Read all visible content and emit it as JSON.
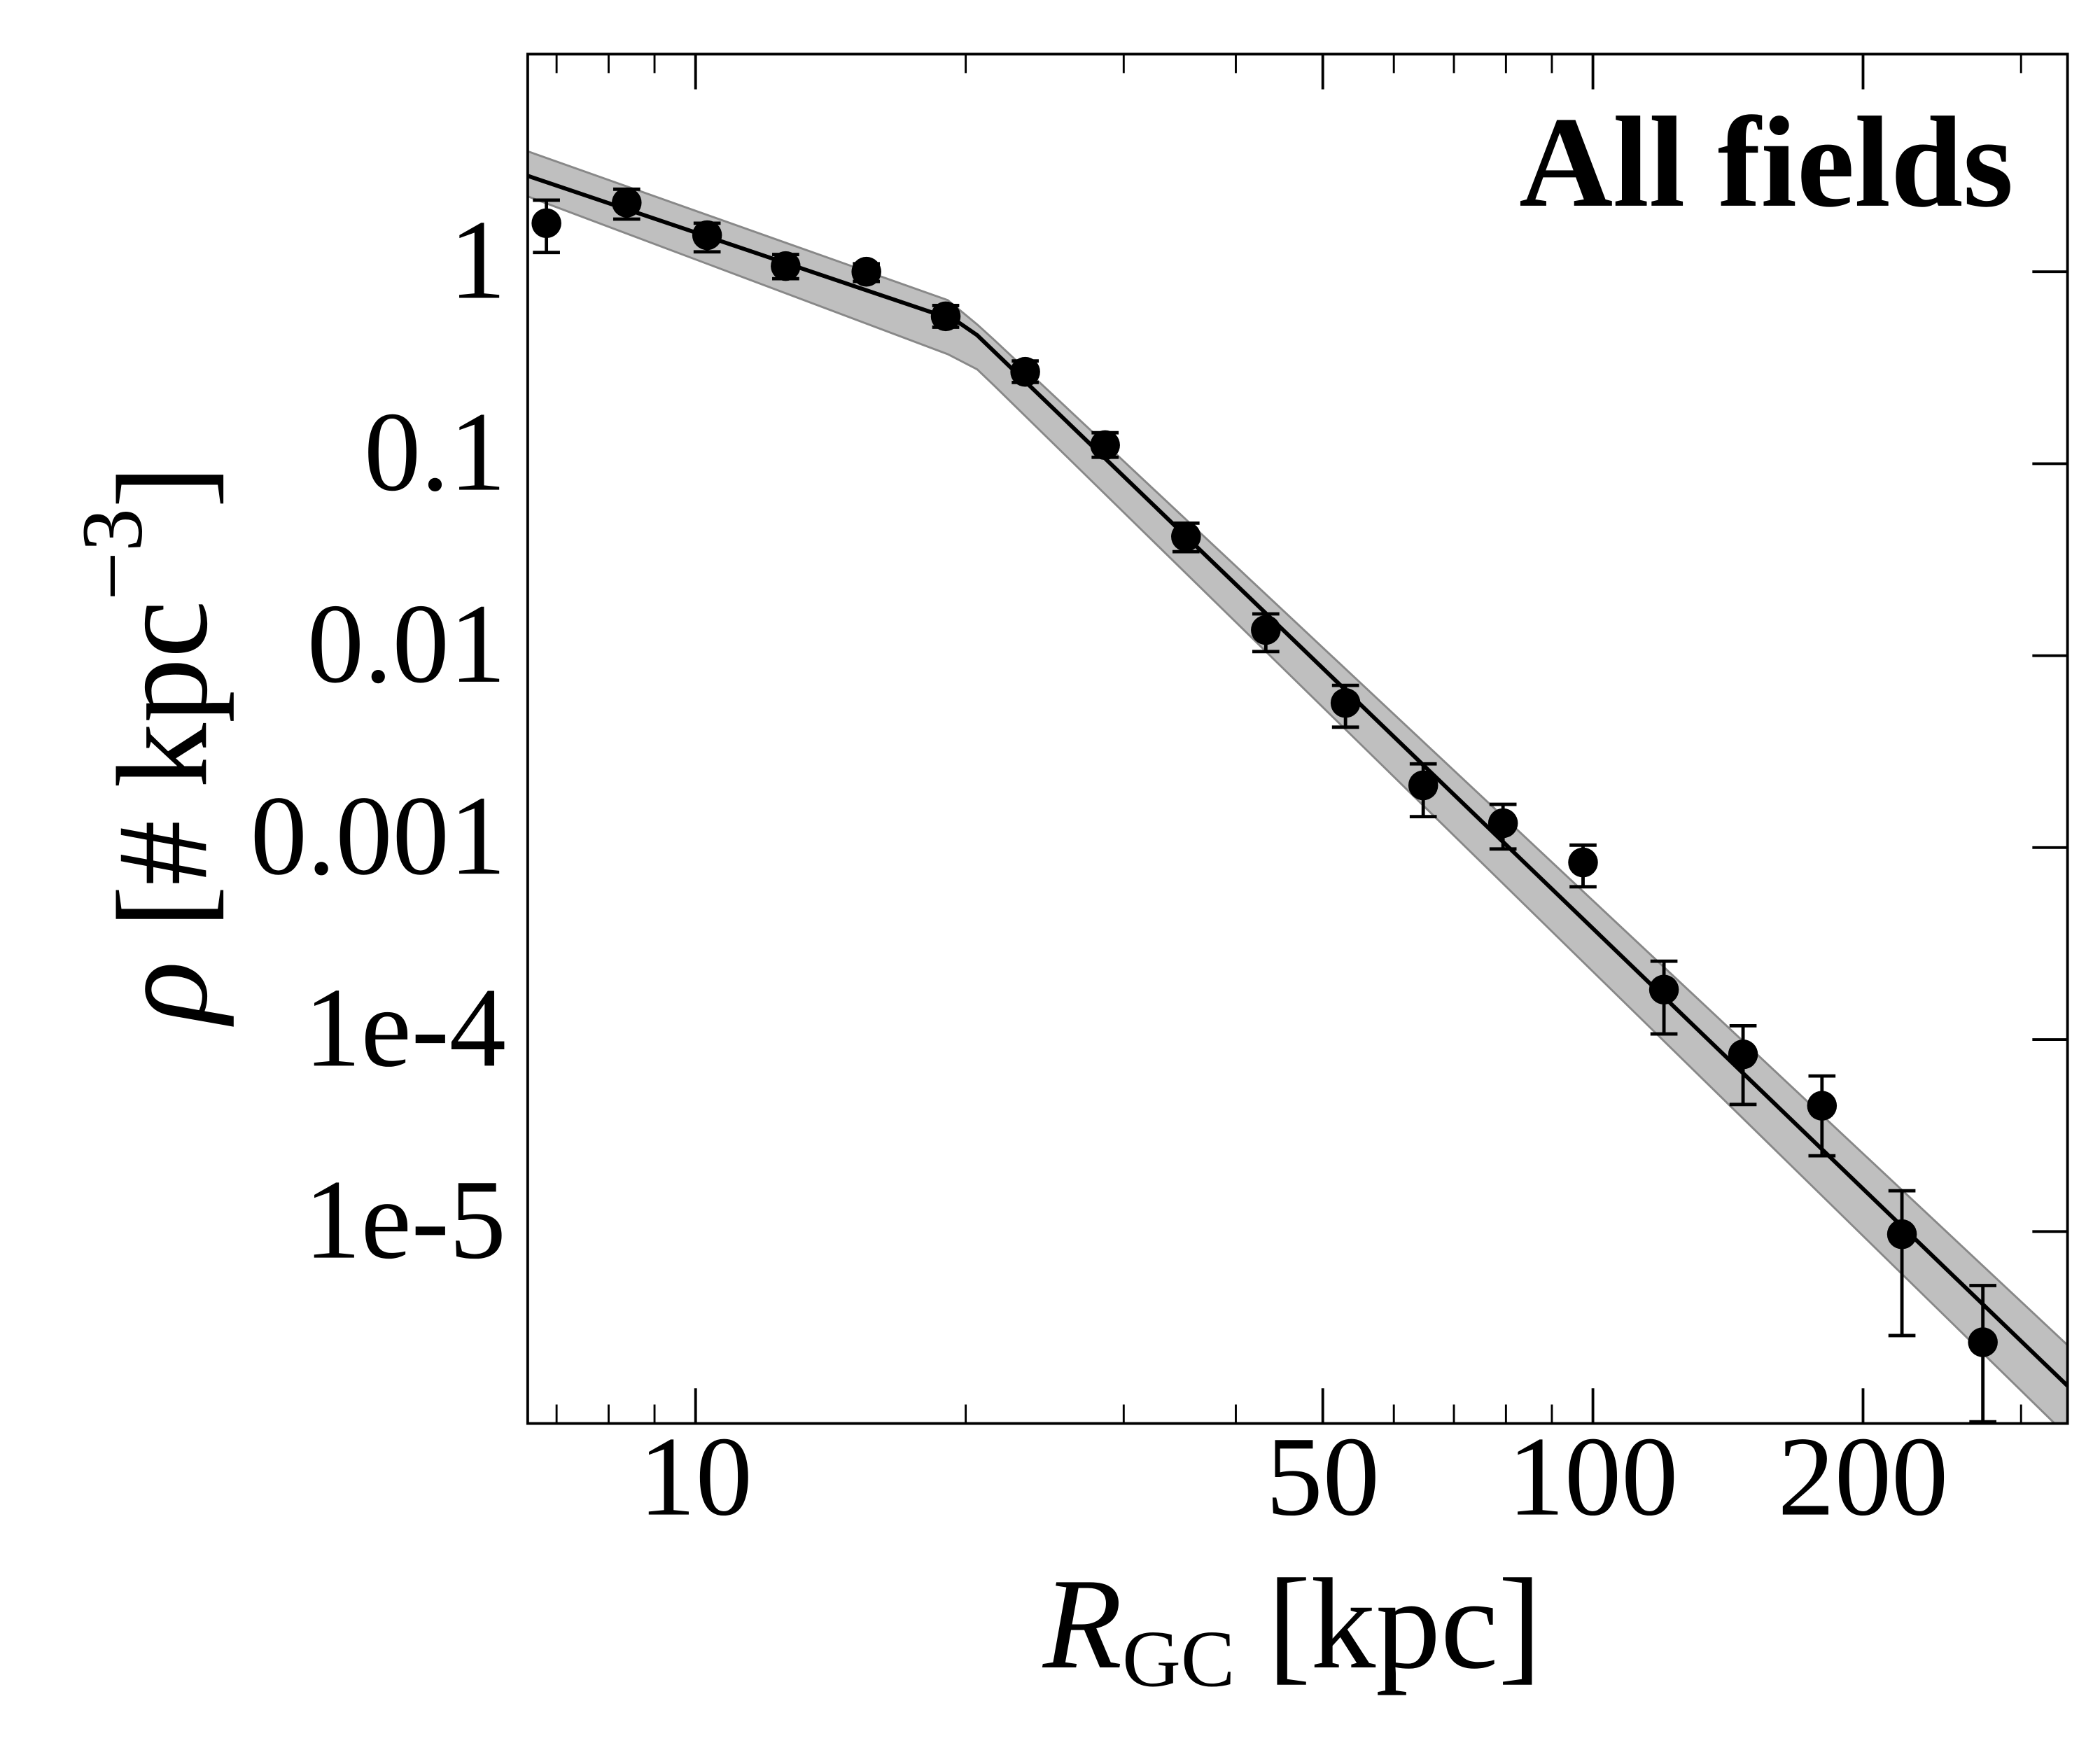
{
  "chart_data": {
    "type": "scatter",
    "title": "All fields",
    "xlabel": {
      "main": "R",
      "sub": "GC",
      "unit": "[kpc]"
    },
    "ylabel": {
      "main": "ρ",
      "unit": "[# kpc",
      "sup": "−3",
      "close": "]"
    },
    "xscale": "log",
    "yscale": "log",
    "xlim": [
      6.5,
      338
    ],
    "ylim": [
      1e-06,
      13.6
    ],
    "xticks": [
      10,
      50,
      100,
      200
    ],
    "xminorticks": [
      7,
      8,
      9,
      20,
      30,
      40,
      60,
      70,
      80,
      90,
      300
    ],
    "yticks": [
      1,
      0.1,
      0.01,
      0.001,
      {
        "value": 0.0001,
        "label": "1e-4"
      },
      {
        "value": 1e-05,
        "label": "1e-5"
      }
    ],
    "series": [
      {
        "color": "#000000",
        "x": [
          6.82,
          8.38,
          10.3,
          12.6,
          15.5,
          19.0,
          23.3,
          28.6,
          35.2,
          43.2,
          53.0,
          64.7,
          79.4,
          97.5,
          120,
          147,
          180,
          221,
          272
        ],
        "values": [
          1.79,
          2.29,
          1.55,
          1.07,
          1.0,
          0.586,
          0.301,
          0.125,
          0.0417,
          0.0136,
          0.00567,
          0.00211,
          0.00134,
          0.000837,
          0.000182,
          8.37e-05,
          4.52e-05,
          9.68e-06,
          2.65e-06
        ],
        "lower": [
          1.26,
          1.88,
          1.27,
          0.92,
          0.89,
          0.514,
          0.265,
          0.108,
          0.0348,
          0.0105,
          0.00424,
          0.00145,
          0.000984,
          0.000625,
          0.000107,
          4.59e-05,
          2.48e-05,
          2.87e-06,
          1.02e-06
        ],
        "upper": [
          2.36,
          2.69,
          1.79,
          1.23,
          1.1,
          0.667,
          0.343,
          0.145,
          0.049,
          0.0165,
          0.007,
          0.00273,
          0.00168,
          0.00103,
          0.000256,
          0.000118,
          6.46e-05,
          1.63e-05,
          5.23e-06
        ]
      }
    ],
    "model": {
      "color": "#000000",
      "x": [
        6.5,
        19.5,
        20.6,
        338
      ],
      "values": [
        3.16,
        0.557,
        0.467,
        1.57e-06
      ]
    },
    "band": {
      "color": "#bfbfbf",
      "x": [
        6.5,
        19.1,
        20.6,
        21.5,
        338
      ],
      "upper": [
        4.24,
        0.711,
        0.531,
        0.443,
        2.56e-06
      ],
      "lower": [
        2.47,
        0.372,
        0.31,
        0.256,
        8.6e-07
      ]
    }
  }
}
